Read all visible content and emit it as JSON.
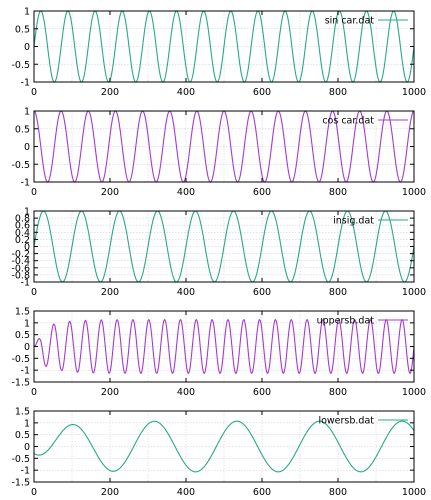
{
  "chart_data": [
    {
      "type": "line",
      "name": "sin-car",
      "legend": "sin car.dat",
      "color": "#2aa88a",
      "function": "carrier_sin",
      "cycles": 14,
      "samples": 1001,
      "xlim": [
        0,
        1000
      ],
      "ylim": [
        -1,
        1
      ],
      "xticks": [
        0,
        200,
        400,
        600,
        800,
        1000
      ],
      "yticks": [
        -1,
        -0.5,
        0,
        0.5,
        1
      ],
      "ytick_labels": [
        "-1",
        "-0.5",
        "0",
        "0.5",
        "1"
      ],
      "legend_position": "top-right",
      "grid": true
    },
    {
      "type": "line",
      "name": "cos-car",
      "legend": "cos car.dat",
      "color": "#a43ad2",
      "function": "carrier_cos",
      "cycles": 14,
      "samples": 1001,
      "xlim": [
        0,
        1000
      ],
      "ylim": [
        -1,
        1
      ],
      "xticks": [
        0,
        200,
        400,
        600,
        800,
        1000
      ],
      "yticks": [
        -1,
        -0.5,
        0,
        0.5,
        1
      ],
      "ytick_labels": [
        "-1",
        "-0.5",
        "0",
        "0.5",
        "1"
      ],
      "legend_position": "top-right",
      "grid": true
    },
    {
      "type": "line",
      "name": "insig",
      "legend": "insig.dat",
      "color": "#2aa88a",
      "function": "signal_sin",
      "cycles": 10,
      "samples": 1001,
      "xlim": [
        0,
        1000
      ],
      "ylim": [
        -1,
        1
      ],
      "xticks": [
        0,
        200,
        400,
        600,
        800,
        1000
      ],
      "yticks": [
        -1,
        -0.8,
        -0.6,
        -0.4,
        -0.2,
        0,
        0.2,
        0.4,
        0.6,
        0.8,
        1
      ],
      "ytick_labels": [
        "-1",
        "-0.8",
        "-0.6",
        "-0.4",
        "-0.2",
        "0",
        "0.2",
        "0.4",
        "0.6",
        "0.8",
        "1"
      ],
      "legend_position": "top-right",
      "grid": true
    },
    {
      "type": "line",
      "name": "uppersb",
      "legend": "uppersb.dat",
      "color": "#a43ad2",
      "function": "upper_sideband",
      "cycles": 24,
      "samples": 1001,
      "xlim": [
        0,
        1000
      ],
      "ylim": [
        -1.5,
        1.5
      ],
      "xticks": [
        0,
        200,
        400,
        600,
        800,
        1000
      ],
      "yticks": [
        -1.5,
        -1,
        -0.5,
        0,
        0.5,
        1,
        1.5
      ],
      "ytick_labels": [
        "-1.5",
        "-1",
        "-0.5",
        "0",
        "0.5",
        "1",
        "1.5"
      ],
      "legend_position": "top-right",
      "grid": true
    },
    {
      "type": "line",
      "name": "lowersb",
      "legend": "lowersb.dat",
      "color": "#2aa88a",
      "function": "lower_sideband",
      "cycles": 4.6,
      "samples": 1001,
      "xlim": [
        0,
        1000
      ],
      "ylim": [
        -1.5,
        1.5
      ],
      "xticks": [
        0,
        200,
        400,
        600,
        800,
        1000
      ],
      "yticks": [
        -1.5,
        -1,
        -0.5,
        0,
        0.5,
        1,
        1.5
      ],
      "ytick_labels": [
        "-1.5",
        "-1",
        "-0.5",
        "0",
        "0.5",
        "1",
        "1.5"
      ],
      "legend_position": "top-right",
      "grid": true
    }
  ]
}
